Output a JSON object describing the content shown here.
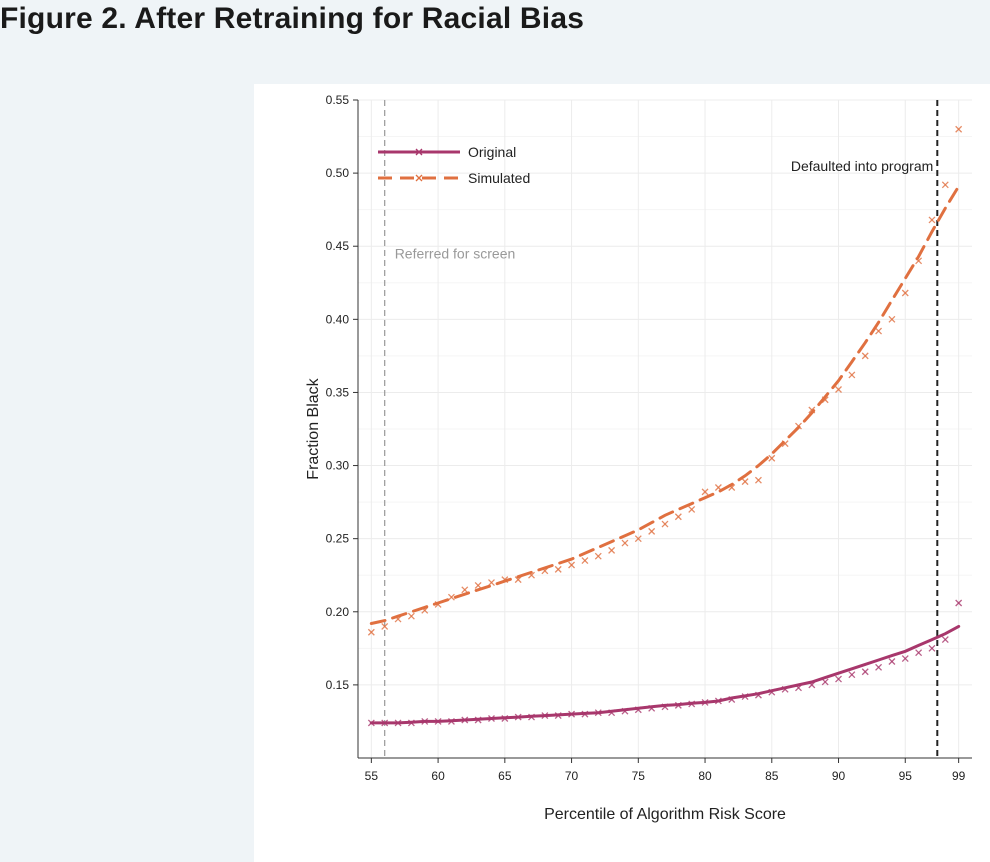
{
  "figure_title": "Figure 2. After Retraining for Racial Bias",
  "colors": {
    "page_background": "#eff4f7",
    "original": "#a8376c",
    "simulated": "#e07040",
    "grid": "#ececec",
    "referred_line": "#999999",
    "default_line": "#222222"
  },
  "chart_data": {
    "type": "line",
    "title": "",
    "xlabel": "Percentile of Algorithm Risk Score",
    "ylabel": "Fraction Black",
    "xlim": [
      54,
      100
    ],
    "ylim": [
      0.1,
      0.55
    ],
    "xticks": [
      55,
      60,
      65,
      70,
      75,
      80,
      85,
      90,
      95,
      99
    ],
    "yticks": [
      0.15,
      0.2,
      0.25,
      0.3,
      0.35,
      0.4,
      0.45,
      0.5,
      0.55
    ],
    "grid": true,
    "legend_position": "top-left",
    "x": [
      55,
      56,
      57,
      58,
      59,
      60,
      61,
      62,
      63,
      64,
      65,
      66,
      67,
      68,
      69,
      70,
      71,
      72,
      73,
      74,
      75,
      76,
      77,
      78,
      79,
      80,
      81,
      82,
      83,
      84,
      85,
      86,
      87,
      88,
      89,
      90,
      91,
      92,
      93,
      94,
      95,
      96,
      97,
      98,
      99
    ],
    "series": [
      {
        "name": "Original",
        "style": "solid",
        "fit": [
          0.124,
          0.124,
          0.124,
          0.1245,
          0.125,
          0.125,
          0.1255,
          0.126,
          0.1265,
          0.127,
          0.1275,
          0.128,
          0.1285,
          0.129,
          0.1295,
          0.13,
          0.1305,
          0.131,
          0.132,
          0.133,
          0.134,
          0.135,
          0.136,
          0.1365,
          0.1375,
          0.138,
          0.139,
          0.141,
          0.1425,
          0.144,
          0.146,
          0.148,
          0.15,
          0.152,
          0.155,
          0.158,
          0.161,
          0.164,
          0.167,
          0.17,
          0.173,
          0.177,
          0.181,
          0.185,
          0.19
        ],
        "points": [
          0.124,
          0.124,
          0.124,
          0.124,
          0.125,
          0.125,
          0.125,
          0.126,
          0.126,
          0.127,
          0.127,
          0.128,
          0.128,
          0.129,
          0.129,
          0.13,
          0.13,
          0.131,
          0.131,
          0.132,
          0.133,
          0.134,
          0.135,
          0.136,
          0.137,
          0.138,
          0.139,
          0.14,
          0.142,
          0.143,
          0.145,
          0.147,
          0.148,
          0.15,
          0.152,
          0.154,
          0.157,
          0.159,
          0.162,
          0.166,
          0.168,
          0.172,
          0.175,
          0.181,
          0.206
        ]
      },
      {
        "name": "Simulated",
        "style": "dashed",
        "fit": [
          0.192,
          0.194,
          0.197,
          0.2,
          0.203,
          0.206,
          0.209,
          0.212,
          0.215,
          0.218,
          0.221,
          0.224,
          0.227,
          0.23,
          0.233,
          0.236,
          0.24,
          0.244,
          0.248,
          0.252,
          0.256,
          0.261,
          0.266,
          0.27,
          0.274,
          0.278,
          0.282,
          0.287,
          0.293,
          0.3,
          0.308,
          0.317,
          0.326,
          0.336,
          0.347,
          0.358,
          0.371,
          0.384,
          0.398,
          0.413,
          0.428,
          0.443,
          0.46,
          0.476,
          0.491
        ],
        "points": [
          0.186,
          0.19,
          0.195,
          0.197,
          0.201,
          0.205,
          0.21,
          0.215,
          0.218,
          0.22,
          0.222,
          0.222,
          0.225,
          0.228,
          0.229,
          0.232,
          0.235,
          0.238,
          0.242,
          0.247,
          0.25,
          0.255,
          0.26,
          0.265,
          0.27,
          0.282,
          0.285,
          0.285,
          0.289,
          0.29,
          0.305,
          0.315,
          0.327,
          0.338,
          0.345,
          0.352,
          0.362,
          0.375,
          0.392,
          0.4,
          0.418,
          0.44,
          0.468,
          0.492,
          0.53
        ]
      }
    ],
    "vlines": [
      {
        "x": 56,
        "label": "Referred for screen",
        "style": "dashed",
        "color": "#999999"
      },
      {
        "x": 97.4,
        "label": "Defaulted into program",
        "style": "dashed",
        "color": "#222222"
      }
    ]
  }
}
